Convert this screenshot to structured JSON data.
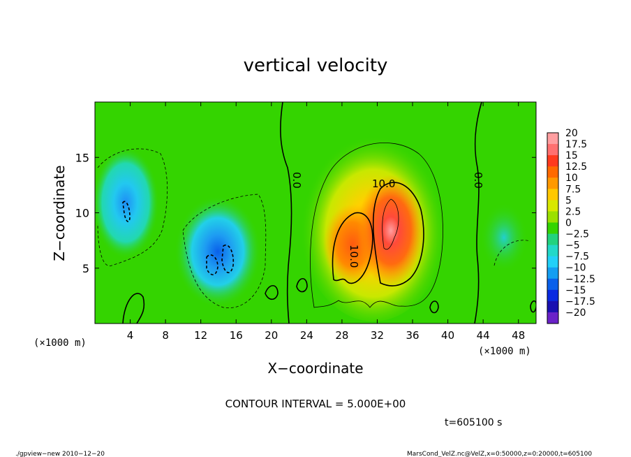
{
  "chart_data": {
    "type": "heatmap",
    "title": "vertical velocity",
    "xlabel": "X−coordinate",
    "ylabel": "Z−coordinate",
    "x_unit_left": "(×1000 m)",
    "x_unit_right": "(×1000 m)",
    "xlim": [
      0,
      50
    ],
    "ylim": [
      0,
      20
    ],
    "x_ticks": [
      4,
      8,
      12,
      16,
      20,
      24,
      28,
      32,
      36,
      40,
      44,
      48
    ],
    "y_ticks": [
      5,
      10,
      15
    ],
    "contour_interval_text": "CONTOUR INTERVAL = 5.000E+00",
    "contour_labels": [
      "0.0",
      "10.0",
      "10.0",
      "0.0"
    ],
    "time_text": "t=605100 s",
    "colorbar": {
      "labels": [
        "20",
        "17.5",
        "15",
        "12.5",
        "10",
        "7.5",
        "5",
        "2.5",
        "0",
        "−2.5",
        "−5",
        "−7.5",
        "−10",
        "−12.5",
        "−15",
        "−17.5",
        "−20"
      ],
      "colors": [
        "#ff9ea0",
        "#ff7070",
        "#ff3a1e",
        "#ff6a00",
        "#ff9900",
        "#ffc800",
        "#d8e800",
        "#9be000",
        "#34d400",
        "#22d27e",
        "#22d8c8",
        "#22d0f8",
        "#149ef2",
        "#0a60ea",
        "#0a2ae0",
        "#1a10b0",
        "#6a22c8"
      ]
    },
    "features": [
      {
        "x": 4,
        "z": 10.5,
        "w": -8
      },
      {
        "x": 14.5,
        "z": 5.5,
        "w": -10
      },
      {
        "x": 29,
        "z": 6,
        "w": 10
      },
      {
        "x": 33,
        "z": 9,
        "w": 15
      }
    ]
  },
  "footer": {
    "left": "./gpview−new   2010−12−20",
    "right": "MarsCond_VelZ.nc@VelZ,x=0:50000,z=0:20000,t=605100"
  }
}
